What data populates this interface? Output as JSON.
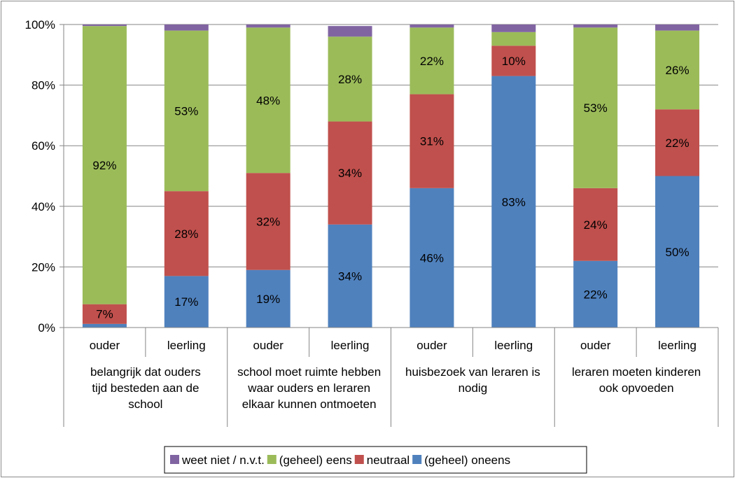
{
  "chart_data": {
    "type": "bar",
    "stacked": true,
    "percent": true,
    "ylim": [
      0,
      100
    ],
    "yticks": [
      "0%",
      "20%",
      "40%",
      "60%",
      "80%",
      "100%"
    ],
    "grid": true,
    "legend_position": "bottom",
    "categories": [
      "ouder",
      "leerling",
      "ouder",
      "leerling",
      "ouder",
      "leerling",
      "ouder",
      "leerling"
    ],
    "groups": [
      "belangrijk dat ouders tijd besteden aan de school",
      "school moet ruimte hebben waar ouders en leraren elkaar kunnen ontmoeten",
      "huisbezoek van leraren is nodig",
      "leraren moeten kinderen ook opvoeden"
    ],
    "series": [
      {
        "name": "(geheel) oneens",
        "color": "#4f81bd",
        "values": [
          1.2,
          17,
          19,
          34,
          46,
          83,
          22,
          50
        ],
        "labels": [
          "",
          "17%",
          "19%",
          "34%",
          "46%",
          "83%",
          "22%",
          "50%"
        ]
      },
      {
        "name": "neutraal",
        "color": "#c0504d",
        "values": [
          6.5,
          28,
          32,
          34,
          31,
          10,
          24,
          22
        ],
        "labels": [
          "7%",
          "28%",
          "32%",
          "34%",
          "31%",
          "10%",
          "24%",
          "22%"
        ]
      },
      {
        "name": "(geheel) eens",
        "color": "#9bbb59",
        "values": [
          91.8,
          53,
          48,
          28,
          22,
          4.5,
          53,
          26
        ],
        "labels": [
          "92%",
          "53%",
          "48%",
          "28%",
          "22%",
          "",
          "53%",
          "26%"
        ]
      },
      {
        "name": "weet niet / n.v.t.",
        "color": "#8064a2",
        "values": [
          0.5,
          2,
          1,
          3.5,
          1,
          2.5,
          1,
          2
        ],
        "labels": [
          "",
          "",
          "",
          "",
          "",
          "",
          "",
          ""
        ]
      }
    ],
    "legend_order": [
      "weet niet / n.v.t.",
      "(geheel) eens",
      "neutraal",
      "(geheel) oneens"
    ]
  }
}
